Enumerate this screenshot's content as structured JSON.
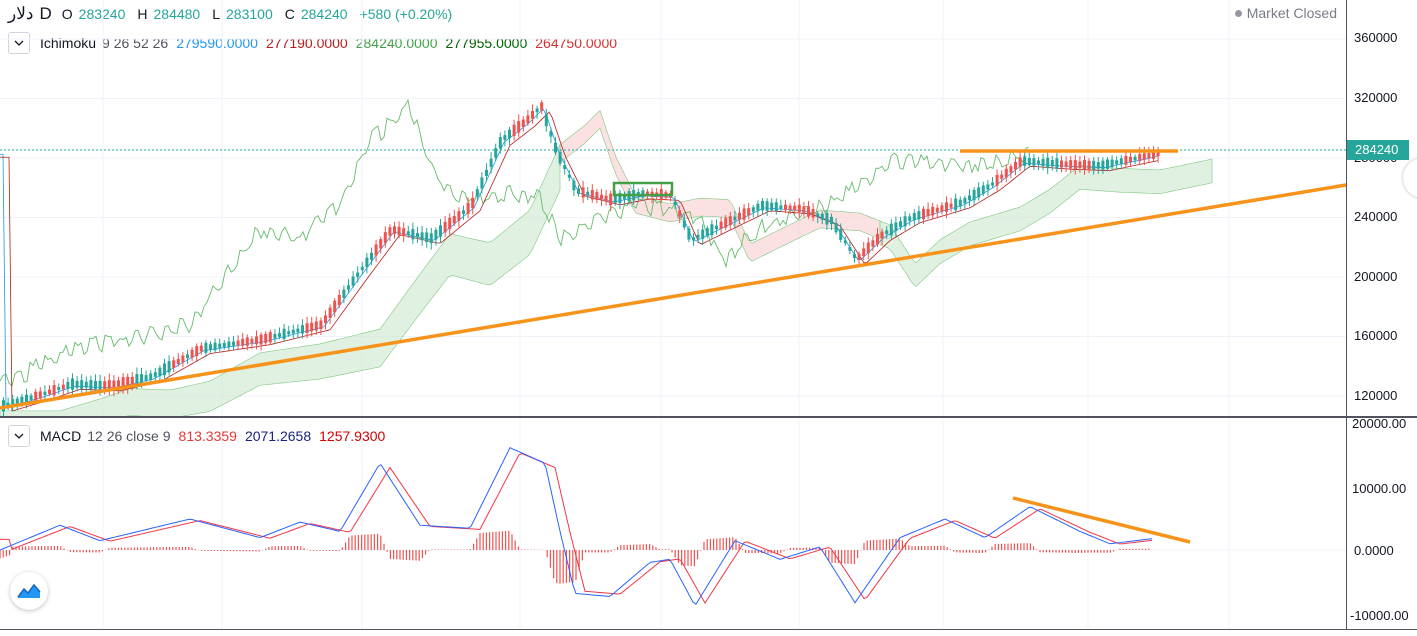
{
  "header": {
    "symbol": "دلار",
    "interval": "D",
    "ohlc": {
      "open_label": "O",
      "open": "283240",
      "high_label": "H",
      "high": "284480",
      "low_label": "L",
      "low": "283100",
      "close_label": "C",
      "close": "284240",
      "change": "+580 (+0.20%)"
    },
    "status": "Market Closed"
  },
  "ichimoku": {
    "name": "Ichimoku",
    "params": "9 26 52 26",
    "values": [
      "279590.0000",
      "277190.0000",
      "284240.0000",
      "277955.0000",
      "264750.0000"
    ],
    "colors": [
      "#2196f3",
      "#b71c1c",
      "#43a047",
      "#006400",
      "#d32f2f"
    ]
  },
  "macd": {
    "name": "MACD",
    "params": "12 26 close 9",
    "values": [
      "813.3359",
      "2071.2658",
      "1257.9300"
    ],
    "colors": [
      "#e53935",
      "#1a237e",
      "#d50000"
    ]
  },
  "price_axis": {
    "labels": [
      "360000",
      "320000",
      "280000",
      "240000",
      "200000",
      "160000",
      "120000"
    ],
    "current_price": "284240"
  },
  "macd_axis": {
    "labels": [
      "20000.00",
      "10000.00",
      "0.0000",
      "-10000.00"
    ]
  },
  "colors": {
    "up": "#26a69a",
    "down": "#ef5350",
    "trendline": "#f7931a",
    "kumo_bull": "#c8e6c9",
    "kumo_bear": "#f8c9c9",
    "macd_line": "#2962ff",
    "signal_line": "#f23645"
  },
  "icons": [
    "chevron-down-icon",
    "tradingview-logo-icon"
  ]
}
